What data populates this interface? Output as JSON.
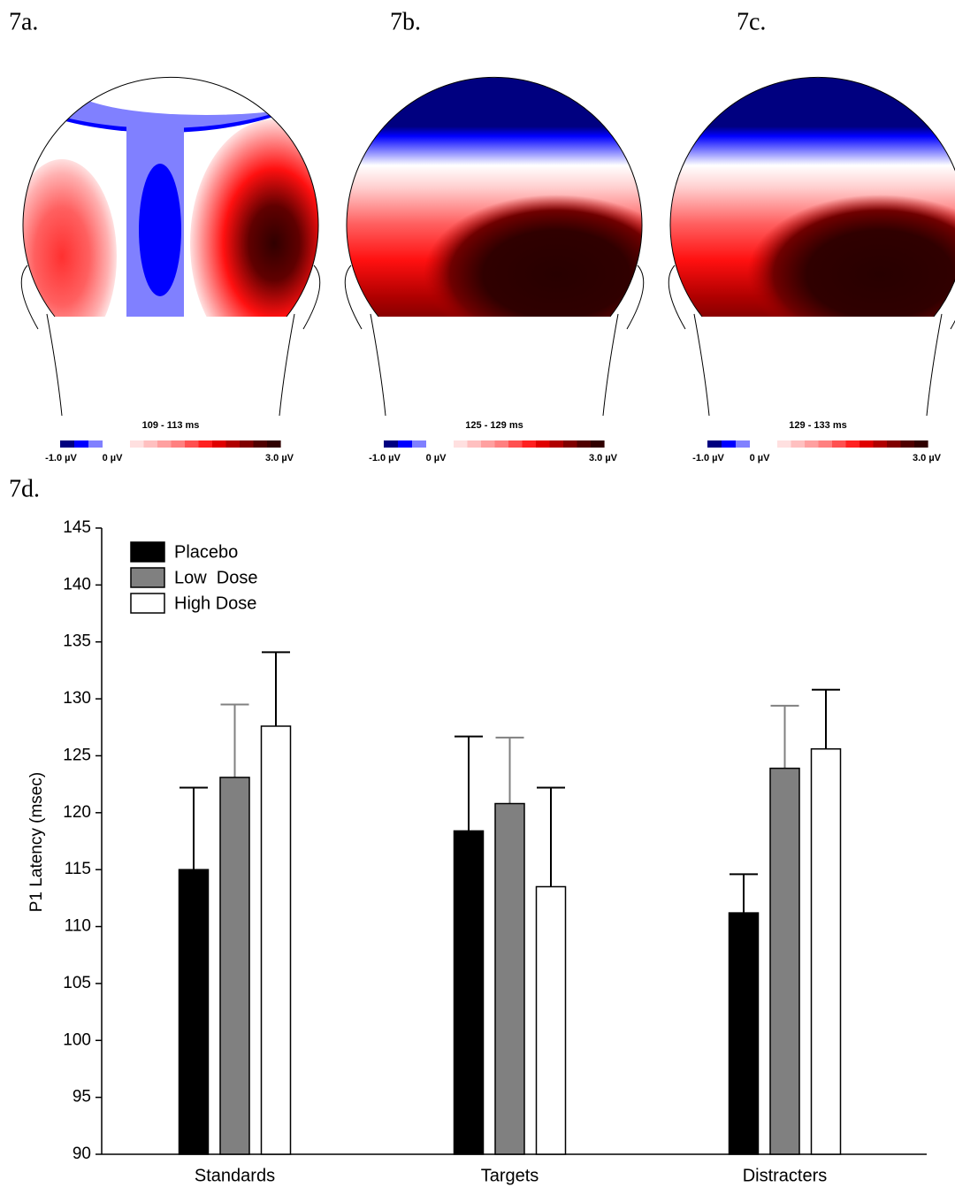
{
  "panel_labels": [
    "7a.",
    "7b.",
    "7c.",
    "7d."
  ],
  "topomaps": [
    {
      "time": "109 - 113 ms",
      "scale_labels": [
        "-1.0 µV",
        "0 µV",
        "3.0 µV"
      ]
    },
    {
      "time": "125 - 129 ms",
      "scale_labels": [
        "-1.0 µV",
        "0 µV",
        "3.0 µV"
      ]
    },
    {
      "time": "129 - 133 ms",
      "scale_labels": [
        "-1.0 µV",
        "0 µV",
        "3.0 µV"
      ]
    }
  ],
  "chart_data": {
    "type": "bar",
    "y_label": "P1 Latency (msec)",
    "categories": [
      "Standards",
      "Targets",
      "Distracters"
    ],
    "series": [
      {
        "name": "Placebo",
        "color": "#000000",
        "error_color": "#000000",
        "values": [
          115.0,
          118.4,
          111.2
        ],
        "errors": [
          7.2,
          8.3,
          3.4
        ]
      },
      {
        "name": "Low  Dose",
        "color": "#808080",
        "error_color": "#808080",
        "values": [
          123.1,
          120.8,
          123.9
        ],
        "errors": [
          6.4,
          5.8,
          5.5
        ]
      },
      {
        "name": "High Dose",
        "color": "#ffffff",
        "error_color": "#000000",
        "values": [
          127.6,
          113.5,
          125.6
        ],
        "errors": [
          6.5,
          8.7,
          5.2
        ]
      }
    ],
    "ylim": [
      90,
      145
    ],
    "yticks": [
      90,
      95,
      100,
      105,
      110,
      115,
      120,
      125,
      130,
      135,
      140,
      145
    ],
    "legend": "upper left",
    "grid": false
  }
}
